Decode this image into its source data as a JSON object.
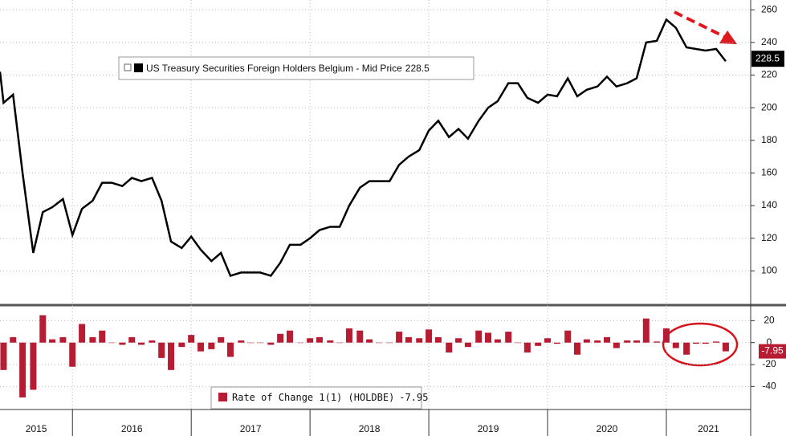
{
  "chart_data": [
    {
      "type": "line",
      "x": [
        2015.39,
        2015.42,
        2015.5,
        2015.58,
        2015.67,
        2015.75,
        2015.83,
        2015.92,
        2016,
        2016.08,
        2016.17,
        2016.25,
        2016.33,
        2016.42,
        2016.5,
        2016.58,
        2016.67,
        2016.75,
        2016.83,
        2016.92,
        2017,
        2017.08,
        2017.17,
        2017.25,
        2017.33,
        2017.42,
        2017.5,
        2017.58,
        2017.67,
        2017.75,
        2017.83,
        2017.92,
        2018,
        2018.08,
        2018.17,
        2018.25,
        2018.33,
        2018.42,
        2018.5,
        2018.58,
        2018.67,
        2018.75,
        2018.83,
        2018.92,
        2019,
        2019.08,
        2019.17,
        2019.25,
        2019.33,
        2019.42,
        2019.5,
        2019.58,
        2019.67,
        2019.75,
        2019.83,
        2019.92,
        2020,
        2020.08,
        2020.17,
        2020.25,
        2020.33,
        2020.42,
        2020.5,
        2020.58,
        2020.67,
        2020.75,
        2020.83,
        2020.92,
        2021,
        2021.08,
        2021.17,
        2021.25,
        2021.33,
        2021.42,
        2021.5
      ],
      "series": [
        {
          "name": "US Treasury Securities Foreign Holders Belgium - Mid Price",
          "color": "#000000",
          "values": [
            222,
            203,
            208,
            160,
            111,
            136,
            139,
            144,
            122,
            138,
            143,
            154,
            154,
            152,
            157,
            155,
            157,
            143,
            118,
            114,
            121,
            113,
            106,
            111,
            97,
            99,
            99,
            99,
            97,
            105,
            116,
            116,
            120,
            125,
            127,
            127,
            140,
            151,
            155,
            155,
            155,
            165,
            170,
            174,
            186,
            192,
            182,
            187,
            181,
            192,
            200,
            204,
            215,
            215,
            206,
            203,
            208,
            207,
            218,
            207,
            211,
            213,
            219,
            213,
            215,
            218,
            240,
            241,
            254,
            249,
            237,
            236,
            235,
            236,
            228.5
          ]
        }
      ],
      "xlim": [
        2015.39,
        2021.71
      ],
      "xticks": [
        2015,
        2016,
        2017,
        2018,
        2019,
        2020,
        2021
      ],
      "ylim": [
        80,
        266
      ],
      "yticks": [
        100,
        120,
        140,
        160,
        180,
        200,
        220,
        240,
        260
      ],
      "grid": true
    },
    {
      "type": "bar",
      "x": [
        2015.42,
        2015.5,
        2015.58,
        2015.67,
        2015.75,
        2015.83,
        2015.92,
        2016,
        2016.08,
        2016.17,
        2016.25,
        2016.33,
        2016.42,
        2016.5,
        2016.58,
        2016.67,
        2016.75,
        2016.83,
        2016.92,
        2017,
        2017.08,
        2017.17,
        2017.25,
        2017.33,
        2017.42,
        2017.5,
        2017.58,
        2017.67,
        2017.75,
        2017.83,
        2017.92,
        2018,
        2018.08,
        2018.17,
        2018.25,
        2018.33,
        2018.42,
        2018.5,
        2018.58,
        2018.67,
        2018.75,
        2018.83,
        2018.92,
        2019,
        2019.08,
        2019.17,
        2019.25,
        2019.33,
        2019.42,
        2019.5,
        2019.58,
        2019.67,
        2019.75,
        2019.83,
        2019.92,
        2020,
        2020.08,
        2020.17,
        2020.25,
        2020.33,
        2020.42,
        2020.5,
        2020.58,
        2020.67,
        2020.75,
        2020.83,
        2020.92,
        2021,
        2021.08,
        2021.17,
        2021.25,
        2021.33,
        2021.42,
        2021.5
      ],
      "series": [
        {
          "name": "Rate of Change 1(1) (HOLDBE)",
          "color": "#b81c33",
          "values": [
            -25,
            5,
            -50,
            -43,
            25,
            3,
            5,
            -22,
            17,
            5,
            11,
            0,
            -2,
            5,
            -2,
            2,
            -14,
            -25,
            -4,
            7,
            -8,
            -6,
            5,
            -13,
            2,
            0,
            0,
            -2,
            8,
            11,
            0,
            4,
            5,
            2,
            0,
            13,
            11,
            3,
            0,
            0,
            10,
            5,
            4,
            12,
            5,
            -9,
            4,
            -4,
            11,
            9,
            3,
            10,
            0,
            -9,
            -3,
            4,
            -1,
            11,
            -11,
            3,
            2,
            5,
            -5,
            2,
            2,
            22,
            1,
            13,
            -5,
            -11,
            -1,
            -1,
            1,
            -7.95
          ]
        }
      ],
      "xlim": [
        2015.39,
        2021.71
      ],
      "xticks": [
        2015,
        2016,
        2017,
        2018,
        2019,
        2020,
        2021
      ],
      "ylim": [
        -61,
        32
      ],
      "yticks": [
        -40,
        -20,
        0,
        20
      ],
      "grid": true
    }
  ]
}
